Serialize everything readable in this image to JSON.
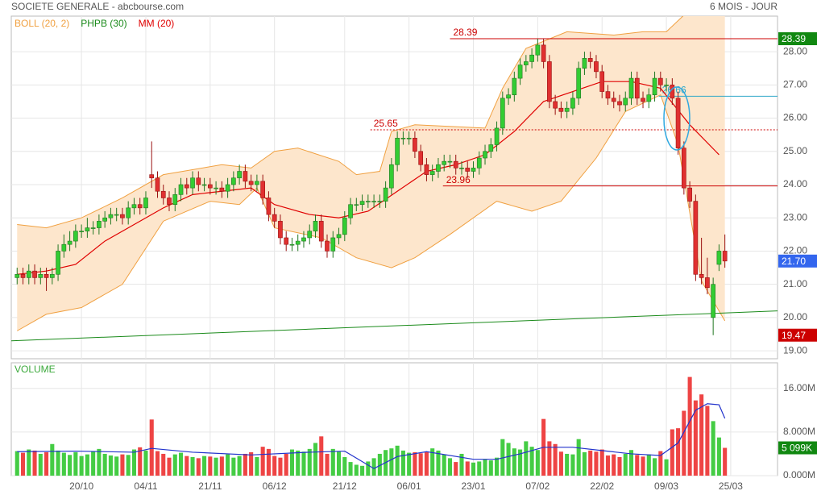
{
  "chart_data": {
    "type": "candlestick",
    "title": "SOCIETE GENERALE - abcbourse.com",
    "subtitle": "6 MOIS - JOUR",
    "legend": [
      {
        "name": "BOLL (20, 2)",
        "color": "#f0a040"
      },
      {
        "name": "PHPB (30)",
        "color": "#1a8a1a"
      },
      {
        "name": "MM (20)",
        "color": "#e00000"
      }
    ],
    "open": [
      21.2,
      21.3,
      21.2,
      21.4,
      21.2,
      21.3,
      21.2,
      21.3,
      22.0,
      22.2,
      22.3,
      22.6,
      22.6,
      22.7,
      22.7,
      22.9,
      23.0,
      23.1,
      23.1,
      23.0,
      23.3,
      23.4,
      23.3,
      24.3,
      24.2,
      23.8,
      23.6,
      23.4,
      23.7,
      24.0,
      23.9,
      24.2,
      24.0,
      24.0,
      23.9,
      23.9,
      23.8,
      24.0,
      24.2,
      24.4,
      24.1,
      24.0,
      24.1,
      23.6,
      23.1,
      22.9,
      22.4,
      22.2,
      22.2,
      22.3,
      22.4,
      22.6,
      22.9,
      22.3,
      22.0,
      22.4,
      22.5,
      23.0,
      23.4,
      23.4,
      23.5,
      23.5,
      23.5,
      23.5,
      23.9,
      24.6,
      25.4,
      25.4,
      25.4,
      25.0,
      24.6,
      24.3,
      24.4,
      24.6,
      24.7,
      24.7,
      24.5,
      24.5,
      24.4,
      24.5,
      24.8,
      25.0,
      25.2,
      25.7,
      26.6,
      26.7,
      27.2,
      27.6,
      27.7,
      27.9,
      28.2,
      27.7,
      26.5,
      26.3,
      26.2,
      26.3,
      26.6,
      27.5,
      27.8,
      27.7,
      27.4,
      26.8,
      26.6,
      26.5,
      26.4,
      26.6,
      27.2,
      26.6,
      26.5,
      26.7,
      27.2,
      27.0,
      27.0,
      26.6,
      25.1,
      23.9,
      23.5,
      21.3,
      21.2,
      20.0,
      21.6,
      22.0
    ],
    "high": [
      21.5,
      21.5,
      21.6,
      21.6,
      21.5,
      21.5,
      21.5,
      22.2,
      22.5,
      22.6,
      22.8,
      22.8,
      23.0,
      22.9,
      23.1,
      23.2,
      23.3,
      23.3,
      23.3,
      23.5,
      23.6,
      23.6,
      23.8,
      25.3,
      24.4,
      24.0,
      23.8,
      23.9,
      24.2,
      24.2,
      24.4,
      24.4,
      24.2,
      24.2,
      24.1,
      24.1,
      24.2,
      24.4,
      24.6,
      24.6,
      24.3,
      24.3,
      24.3,
      23.8,
      23.3,
      23.1,
      22.6,
      22.4,
      22.5,
      22.6,
      22.8,
      23.1,
      23.1,
      22.5,
      22.6,
      22.7,
      23.2,
      23.6,
      23.6,
      23.7,
      23.7,
      23.7,
      23.7,
      24.1,
      24.8,
      25.6,
      25.6,
      25.6,
      25.6,
      25.2,
      24.8,
      24.6,
      24.8,
      24.9,
      24.9,
      24.9,
      24.7,
      24.7,
      24.7,
      25.0,
      25.2,
      25.4,
      25.9,
      26.8,
      26.9,
      27.4,
      27.8,
      27.9,
      28.1,
      28.39,
      28.4,
      27.9,
      26.7,
      26.5,
      26.5,
      26.8,
      27.7,
      28.0,
      28.0,
      27.9,
      27.6,
      27.0,
      26.8,
      26.7,
      26.8,
      27.4,
      27.4,
      26.8,
      26.9,
      27.4,
      27.4,
      27.2,
      27.2,
      26.8,
      25.3,
      24.1,
      23.7,
      22.4,
      21.8,
      21.2,
      22.2,
      22.5
    ],
    "low": [
      21.0,
      21.0,
      21.0,
      21.0,
      21.0,
      20.8,
      21.0,
      21.1,
      21.8,
      22.0,
      22.1,
      22.4,
      22.4,
      22.5,
      22.5,
      22.7,
      22.8,
      22.9,
      22.8,
      22.8,
      23.1,
      23.1,
      23.1,
      23.9,
      23.6,
      23.4,
      23.2,
      23.2,
      23.5,
      23.7,
      23.7,
      23.8,
      23.8,
      23.7,
      23.7,
      23.6,
      23.6,
      23.8,
      24.0,
      23.9,
      23.8,
      23.8,
      23.4,
      22.9,
      22.7,
      22.2,
      22.0,
      22.0,
      22.0,
      22.1,
      22.2,
      22.4,
      22.1,
      21.8,
      21.8,
      22.2,
      22.3,
      22.8,
      23.2,
      23.2,
      23.3,
      23.3,
      23.3,
      23.3,
      23.7,
      24.4,
      25.2,
      25.2,
      24.8,
      24.4,
      24.1,
      24.1,
      24.2,
      24.4,
      24.5,
      24.3,
      24.3,
      24.2,
      24.2,
      24.3,
      24.6,
      24.8,
      25.0,
      25.5,
      26.4,
      26.5,
      27.0,
      27.4,
      27.5,
      27.7,
      27.5,
      26.3,
      26.1,
      26.0,
      26.0,
      26.1,
      26.4,
      27.3,
      27.5,
      27.2,
      26.6,
      26.4,
      26.3,
      26.2,
      26.2,
      26.4,
      26.4,
      26.3,
      26.3,
      26.5,
      26.8,
      26.8,
      26.4,
      24.9,
      23.7,
      23.3,
      21.1,
      21.0,
      20.7,
      19.47,
      21.4,
      21.5
    ],
    "close": [
      21.3,
      21.2,
      21.4,
      21.2,
      21.3,
      21.2,
      21.3,
      22.0,
      22.2,
      22.3,
      22.6,
      22.6,
      22.7,
      22.7,
      22.9,
      23.0,
      23.1,
      23.1,
      23.0,
      23.3,
      23.4,
      23.3,
      23.6,
      24.2,
      23.8,
      23.6,
      23.4,
      23.7,
      24.0,
      23.9,
      24.2,
      24.0,
      24.0,
      23.9,
      23.9,
      23.8,
      24.0,
      24.2,
      24.4,
      24.1,
      24.0,
      24.1,
      23.6,
      23.1,
      22.9,
      22.4,
      22.2,
      22.2,
      22.3,
      22.4,
      22.6,
      22.9,
      22.3,
      22.0,
      22.4,
      22.5,
      23.0,
      23.4,
      23.4,
      23.5,
      23.5,
      23.5,
      23.5,
      23.9,
      24.6,
      25.4,
      25.4,
      25.4,
      25.0,
      24.6,
      24.3,
      24.4,
      24.6,
      24.7,
      24.7,
      24.5,
      24.5,
      24.4,
      24.5,
      24.8,
      25.0,
      25.2,
      25.7,
      26.6,
      26.7,
      27.2,
      27.6,
      27.7,
      27.9,
      28.2,
      27.7,
      26.5,
      26.3,
      26.2,
      26.3,
      26.6,
      27.5,
      27.8,
      27.7,
      27.4,
      26.8,
      26.6,
      26.5,
      26.4,
      26.6,
      27.2,
      26.6,
      26.5,
      26.7,
      27.2,
      27.0,
      27.0,
      26.6,
      25.1,
      23.9,
      23.5,
      21.3,
      21.2,
      20.9,
      21.0,
      22.0,
      21.7
    ],
    "mm": {
      "color": "#e00000",
      "x": [
        0,
        5,
        10,
        15,
        20,
        25,
        30,
        35,
        40,
        44,
        50,
        55,
        60,
        65,
        70,
        75,
        80,
        85,
        90,
        95,
        100,
        105,
        110,
        115,
        120
      ],
      "values": [
        21.3,
        21.4,
        21.6,
        22.3,
        22.8,
        23.3,
        23.7,
        23.8,
        23.9,
        23.4,
        23.1,
        23.0,
        23.2,
        23.8,
        24.4,
        24.6,
        24.9,
        25.6,
        26.5,
        26.8,
        27.1,
        27.1,
        26.9,
        25.8,
        24.9
      ]
    },
    "bollinger": {
      "color": "#f0a040",
      "fill": "#fde6cc",
      "upper": {
        "x": [
          0,
          5,
          11,
          18,
          25,
          35,
          40,
          44,
          48,
          55,
          58,
          62,
          64,
          68,
          80,
          83,
          87,
          94,
          102,
          107,
          111,
          114,
          121
        ],
        "values": [
          22.8,
          22.7,
          23.0,
          23.6,
          24.3,
          24.6,
          24.5,
          25.0,
          25.1,
          24.7,
          24.3,
          24.4,
          25.6,
          25.8,
          25.7,
          26.9,
          28.1,
          28.6,
          28.5,
          28.6,
          28.6,
          29.1,
          29.1
        ]
      },
      "lower": {
        "x": [
          0,
          5,
          11,
          18,
          25,
          33,
          38,
          41,
          44,
          52,
          58,
          64,
          68,
          74,
          82,
          88,
          93,
          99,
          104,
          110,
          113,
          117,
          121
        ],
        "values": [
          19.6,
          20.1,
          20.3,
          21.0,
          22.9,
          23.5,
          23.4,
          23.9,
          22.7,
          22.4,
          21.8,
          21.5,
          21.8,
          22.5,
          23.5,
          23.2,
          23.5,
          24.8,
          26.2,
          26.7,
          25.2,
          21.1,
          19.9
        ]
      }
    },
    "levels": [
      {
        "value": 28.39,
        "from": 74,
        "color": "#cc0000",
        "dashed": false
      },
      {
        "value": 25.65,
        "from": 60.4,
        "color": "#cc0000",
        "dashed": true
      },
      {
        "value": 23.96,
        "from": 72.8,
        "color": "#cc0000",
        "dashed": false
      },
      {
        "value": 26.66,
        "from": 109.7,
        "color": "#30a8c8",
        "dashed": false
      }
    ],
    "trendline": {
      "color": "#1a8a1a",
      "x": [
        -1,
        130
      ],
      "values": [
        19.3,
        20.2
      ]
    },
    "tags": [
      {
        "value": 28.39,
        "color": "#118811"
      },
      {
        "value": 21.7,
        "label": "21.70",
        "color": "#3366ee"
      },
      {
        "value": 19.47,
        "color": "#cc0000"
      }
    ],
    "xlim": [
      -1,
      130
    ],
    "xticks": [
      {
        "value": 11,
        "label": "20/10"
      },
      {
        "value": 22,
        "label": "04/11"
      },
      {
        "value": 33,
        "label": "21/11"
      },
      {
        "value": 44,
        "label": "06/12"
      },
      {
        "value": 56,
        "label": "21/12"
      },
      {
        "value": 67,
        "label": "06/01"
      },
      {
        "value": 78,
        "label": "23/01"
      },
      {
        "value": 89,
        "label": "07/02"
      },
      {
        "value": 100,
        "label": "22/02"
      },
      {
        "value": 111,
        "label": "09/03"
      },
      {
        "value": 122,
        "label": "25/03"
      }
    ],
    "ylim": [
      18.76,
      29.07
    ],
    "yticks": [
      {
        "value": 28,
        "label": "28.00"
      },
      {
        "value": 27,
        "label": "27.00"
      },
      {
        "value": 26,
        "label": "26.00"
      },
      {
        "value": 25,
        "label": "25.00"
      },
      {
        "value": 24,
        "label": "24.00"
      },
      {
        "value": 23,
        "label": "23.00"
      },
      {
        "value": 22,
        "label": "22.00"
      },
      {
        "value": 21,
        "label": "21.00"
      },
      {
        "value": 20,
        "label": "20.00"
      },
      {
        "value": 19,
        "label": "19.00"
      }
    ],
    "grid": true,
    "volume": {
      "title": "VOLUME",
      "values": [
        4.5,
        4.2,
        4.8,
        4.6,
        4.0,
        4.3,
        5.8,
        4.6,
        4.2,
        3.8,
        4.3,
        3.6,
        3.9,
        4.4,
        4.9,
        4.0,
        3.7,
        3.5,
        3.9,
        3.8,
        4.8,
        5.2,
        4.6,
        10.3,
        4.5,
        4.0,
        3.3,
        3.9,
        4.2,
        3.6,
        3.4,
        3.2,
        3.6,
        3.5,
        3.3,
        3.5,
        3.9,
        3.3,
        3.6,
        4.0,
        4.3,
        3.4,
        5.3,
        4.9,
        3.6,
        3.3,
        4.0,
        4.8,
        4.6,
        4.4,
        4.9,
        6.0,
        7.2,
        4.0,
        4.9,
        4.4,
        3.4,
        2.5,
        2.0,
        1.8,
        2.6,
        3.2,
        4.0,
        4.7,
        5.0,
        5.5,
        4.6,
        4.2,
        4.3,
        4.1,
        4.4,
        5.0,
        4.6,
        3.9,
        3.2,
        2.5,
        4.0,
        2.6,
        2.4,
        2.6,
        3.0,
        2.8,
        3.3,
        6.7,
        6.0,
        5.0,
        4.8,
        6.3,
        5.3,
        4.7,
        10.4,
        6.3,
        5.8,
        4.4,
        4.0,
        3.9,
        6.7,
        4.3,
        4.6,
        4.4,
        4.8,
        3.7,
        3.9,
        3.4,
        4.0,
        4.7,
        3.8,
        3.5,
        3.9,
        3.2,
        4.5,
        3.0,
        8.5,
        8.7,
        11.9,
        18.1,
        13.8,
        14.9,
        12.8,
        10.0,
        7.0,
        5.099
      ],
      "ma": {
        "color": "#2233cc",
        "x": [
          0,
          10,
          20,
          23,
          30,
          40,
          50,
          56,
          61,
          65,
          70,
          78,
          82,
          86,
          90,
          95,
          100,
          105,
          110,
          113,
          116,
          118,
          120,
          121
        ],
        "values": [
          4.4,
          4.5,
          4.3,
          5.0,
          4.3,
          3.8,
          4.3,
          4.5,
          1.3,
          3.5,
          4.4,
          3.0,
          3.0,
          4.0,
          5.2,
          5.2,
          4.6,
          4.0,
          3.7,
          6.0,
          12.0,
          13.2,
          13.0,
          10.5
        ]
      },
      "ylim": [
        0,
        20.7
      ],
      "yticks": [
        {
          "value": 16,
          "label": "16.00M"
        },
        {
          "value": 8,
          "label": "8.000M"
        },
        {
          "value": 0,
          "label": "0.000M"
        }
      ],
      "tag": {
        "value": 5.099,
        "label": "5 099K",
        "color": "#118811"
      }
    }
  }
}
